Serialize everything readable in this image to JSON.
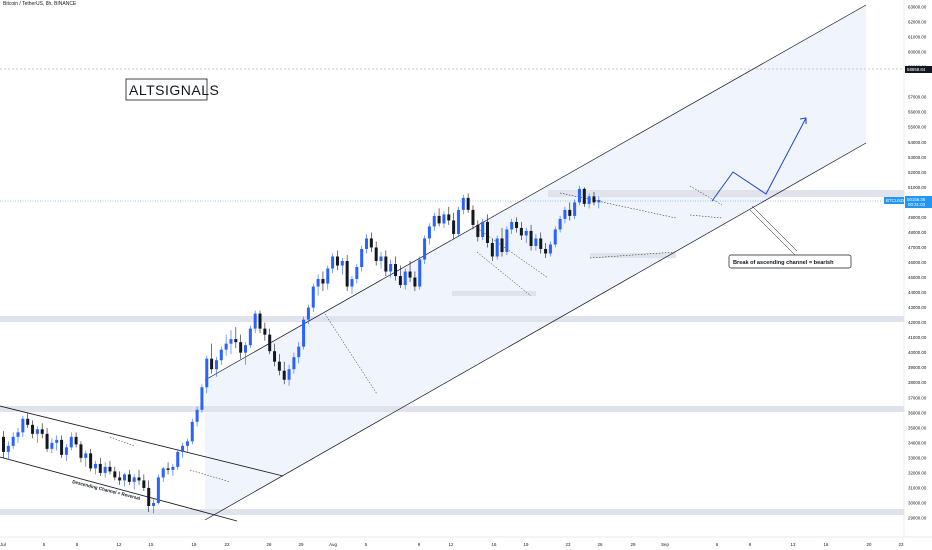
{
  "header": {
    "symbol_title": "Bitcoin / TetherUS, 8h, BINANCE"
  },
  "watermark": "ALTSIGNALS",
  "annotations": {
    "descending_channel": "Descending Channel = Reversal",
    "break_note": "Break of ascending channel = bearish"
  },
  "price_scale": {
    "ticks": [
      "63000.00",
      "62000.00",
      "61000.00",
      "60000.00",
      "59000.00",
      "57000.00",
      "56000.00",
      "55000.00",
      "54000.00",
      "53000.00",
      "52000.00",
      "51000.00",
      "49000.00",
      "48000.00",
      "47000.00",
      "46000.00",
      "45000.00",
      "44000.00",
      "43000.00",
      "42000.00",
      "41000.00",
      "40000.00",
      "39000.00",
      "38000.00",
      "37000.00",
      "36000.00",
      "35000.00",
      "34000.00",
      "33000.00",
      "32000.00",
      "31000.00",
      "30000.00",
      "29000.00"
    ],
    "marked_level": "58858.84",
    "last_price_symbol": "BTCUSDT",
    "last_price": "50156.36",
    "last_price_sub": "00:31:03"
  },
  "time_axis": {
    "labels": [
      "Jul",
      "5",
      "8",
      "12",
      "15",
      "19",
      "22",
      "26",
      "29",
      "Aug",
      "5",
      "9",
      "12",
      "16",
      "19",
      "23",
      "26",
      "29",
      "Sep",
      "6",
      "9",
      "13",
      "16",
      "20",
      "23"
    ]
  },
  "colors": {
    "up": "#2962ff",
    "down": "#131722",
    "channel_fill": "#e9f0fb",
    "zone": "#e0e3eb",
    "projection": "#1848cc",
    "last_price": "#2196f3"
  },
  "chart_data": {
    "type": "candlestick",
    "symbol": "Bitcoin / TetherUS",
    "interval": "8h",
    "exchange": "BINANCE",
    "ylim": [
      28500,
      63900
    ],
    "y_ticks": [
      29000,
      30000,
      31000,
      32000,
      33000,
      34000,
      35000,
      36000,
      37000,
      38000,
      39000,
      40000,
      41000,
      42000,
      43000,
      44000,
      45000,
      46000,
      47000,
      48000,
      49000,
      51000,
      52000,
      53000,
      54000,
      55000,
      56000,
      57000,
      59000,
      60000,
      61000,
      62000,
      63000
    ],
    "last_price": 50156.36,
    "marked_level": 58858.84,
    "zones": [
      {
        "from": 49700,
        "to": 50300
      },
      {
        "from": 42050,
        "to": 42450
      },
      {
        "from": 36250,
        "to": 36650
      },
      {
        "from": 29100,
        "to": 29450
      }
    ],
    "candles": [
      [
        34400,
        34800,
        33000,
        33400
      ],
      [
        33400,
        34100,
        32900,
        33800
      ],
      [
        33800,
        34700,
        33600,
        34400
      ],
      [
        34400,
        35000,
        34000,
        34700
      ],
      [
        34700,
        35800,
        34400,
        35600
      ],
      [
        35600,
        36000,
        35000,
        35200
      ],
      [
        35200,
        35500,
        34300,
        34600
      ],
      [
        34600,
        35100,
        34000,
        34900
      ],
      [
        34900,
        35300,
        34300,
        34600
      ],
      [
        34600,
        35000,
        33400,
        33600
      ],
      [
        33600,
        34300,
        33300,
        34000
      ],
      [
        34000,
        34500,
        33500,
        34200
      ],
      [
        34200,
        34500,
        33000,
        33200
      ],
      [
        33200,
        33900,
        32800,
        33700
      ],
      [
        33700,
        34700,
        33500,
        34400
      ],
      [
        34400,
        34700,
        33700,
        33900
      ],
      [
        33900,
        34100,
        32700,
        33000
      ],
      [
        33000,
        33500,
        32400,
        33300
      ],
      [
        33300,
        33600,
        32100,
        32300
      ],
      [
        32300,
        32800,
        31900,
        32600
      ],
      [
        32600,
        33000,
        31800,
        32000
      ],
      [
        32000,
        32700,
        31700,
        32400
      ],
      [
        32400,
        32800,
        31900,
        32100
      ],
      [
        32100,
        32400,
        31500,
        31700
      ],
      [
        31700,
        32100,
        31200,
        31500
      ],
      [
        31500,
        32000,
        31100,
        31900
      ],
      [
        31900,
        32200,
        31200,
        31400
      ],
      [
        31400,
        31900,
        30900,
        31700
      ],
      [
        31700,
        32200,
        31200,
        31500
      ],
      [
        31500,
        31900,
        30800,
        31000
      ],
      [
        31000,
        31500,
        29400,
        29800
      ],
      [
        29800,
        30300,
        29300,
        30000
      ],
      [
        30000,
        31900,
        29900,
        31700
      ],
      [
        31700,
        32400,
        31400,
        32300
      ],
      [
        32300,
        32700,
        31900,
        32200
      ],
      [
        32200,
        32600,
        31800,
        32400
      ],
      [
        32400,
        33600,
        32200,
        33400
      ],
      [
        33400,
        34000,
        33000,
        33800
      ],
      [
        33800,
        34300,
        33400,
        34100
      ],
      [
        34100,
        35600,
        33900,
        35400
      ],
      [
        35400,
        36400,
        35100,
        36200
      ],
      [
        36200,
        37900,
        36000,
        37700
      ],
      [
        37700,
        39800,
        37300,
        39600
      ],
      [
        39600,
        40600,
        38600,
        38900
      ],
      [
        38900,
        39700,
        38400,
        39500
      ],
      [
        39500,
        40400,
        39200,
        40200
      ],
      [
        40200,
        41200,
        39800,
        40600
      ],
      [
        40600,
        41500,
        39900,
        40900
      ],
      [
        40900,
        41700,
        40300,
        40700
      ],
      [
        40700,
        41200,
        39600,
        40000
      ],
      [
        40000,
        40700,
        39200,
        40500
      ],
      [
        40500,
        41800,
        40300,
        41600
      ],
      [
        41600,
        42800,
        41300,
        42600
      ],
      [
        42600,
        42800,
        41300,
        41600
      ],
      [
        41600,
        42000,
        40800,
        41200
      ],
      [
        41200,
        41600,
        39900,
        40100
      ],
      [
        40100,
        40600,
        39100,
        39400
      ],
      [
        39400,
        39900,
        38500,
        38800
      ],
      [
        38800,
        39400,
        37900,
        38200
      ],
      [
        38200,
        39200,
        37800,
        38900
      ],
      [
        38900,
        40000,
        38600,
        39700
      ],
      [
        39700,
        40700,
        39300,
        40400
      ],
      [
        40400,
        42400,
        40200,
        42200
      ],
      [
        42200,
        43200,
        41900,
        43000
      ],
      [
        43000,
        44600,
        42700,
        44400
      ],
      [
        44400,
        45200,
        43800,
        44900
      ],
      [
        44900,
        45400,
        44100,
        44600
      ],
      [
        44600,
        45800,
        44200,
        45600
      ],
      [
        45600,
        46600,
        45300,
        46400
      ],
      [
        46400,
        46800,
        45500,
        45800
      ],
      [
        45800,
        46300,
        45200,
        46100
      ],
      [
        46100,
        46500,
        44100,
        44400
      ],
      [
        44400,
        45100,
        43900,
        44900
      ],
      [
        44900,
        45900,
        44600,
        45700
      ],
      [
        45700,
        47100,
        45400,
        46900
      ],
      [
        46900,
        47900,
        46600,
        47600
      ],
      [
        47600,
        48000,
        46700,
        47000
      ],
      [
        47000,
        47400,
        45800,
        46100
      ],
      [
        46100,
        46700,
        45600,
        46400
      ],
      [
        46400,
        46800,
        45100,
        45400
      ],
      [
        45400,
        46200,
        45000,
        45900
      ],
      [
        45900,
        46400,
        44800,
        45100
      ],
      [
        45100,
        45800,
        44300,
        44500
      ],
      [
        44500,
        45600,
        44200,
        45400
      ],
      [
        45400,
        46100,
        44700,
        45000
      ],
      [
        45000,
        45400,
        44100,
        44400
      ],
      [
        44400,
        46400,
        44200,
        46200
      ],
      [
        46200,
        47800,
        45900,
        47600
      ],
      [
        47600,
        48600,
        47200,
        48400
      ],
      [
        48400,
        49300,
        48100,
        49100
      ],
      [
        49100,
        49600,
        48400,
        48600
      ],
      [
        48600,
        49400,
        48300,
        49200
      ],
      [
        49200,
        49700,
        48500,
        48800
      ],
      [
        48800,
        49300,
        47600,
        47900
      ],
      [
        47900,
        49700,
        47700,
        49500
      ],
      [
        49500,
        50500,
        49200,
        50300
      ],
      [
        50300,
        50600,
        49300,
        49500
      ],
      [
        49500,
        49800,
        48200,
        48500
      ],
      [
        48500,
        48800,
        47400,
        47700
      ],
      [
        47700,
        48900,
        47500,
        48700
      ],
      [
        48700,
        49200,
        47000,
        47300
      ],
      [
        47300,
        47600,
        46100,
        46400
      ],
      [
        46400,
        47800,
        46200,
        47600
      ],
      [
        47600,
        48300,
        46400,
        46700
      ],
      [
        46700,
        48400,
        46500,
        48200
      ],
      [
        48200,
        48900,
        47900,
        48700
      ],
      [
        48700,
        49000,
        48000,
        48300
      ],
      [
        48300,
        48700,
        47500,
        47800
      ],
      [
        47800,
        48300,
        47300,
        48100
      ],
      [
        48100,
        48500,
        46800,
        47100
      ],
      [
        47100,
        47900,
        46800,
        47600
      ],
      [
        47600,
        48000,
        46600,
        46900
      ],
      [
        46900,
        47300,
        46300,
        46600
      ],
      [
        46600,
        47400,
        46400,
        47200
      ],
      [
        47200,
        48400,
        47000,
        48200
      ],
      [
        48200,
        49100,
        48000,
        48900
      ],
      [
        48900,
        49700,
        48600,
        49500
      ],
      [
        49500,
        50000,
        48800,
        49100
      ],
      [
        49100,
        50200,
        48900,
        50000
      ],
      [
        50000,
        51100,
        49800,
        50900
      ],
      [
        50900,
        51000,
        49700,
        49900
      ],
      [
        49900,
        50600,
        49600,
        50400
      ],
      [
        50400,
        50700,
        49800,
        50000
      ],
      [
        50000,
        50400,
        49600,
        50156
      ]
    ],
    "projection_path": [
      [
        50156,
        "now"
      ],
      [
        52000,
        "up"
      ],
      [
        50400,
        "down"
      ],
      [
        55700,
        "target"
      ]
    ]
  }
}
